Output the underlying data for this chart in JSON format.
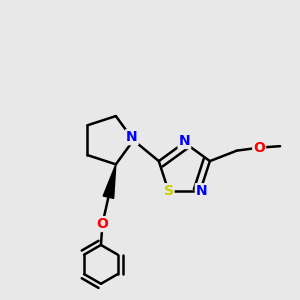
{
  "background_color": "#e8e8e8",
  "bond_color": "#000000",
  "bond_width": 1.8,
  "atom_colors": {
    "N": "#0000FF",
    "S": "#CCCC00",
    "O": "#FF0000",
    "C": "#000000"
  },
  "font_size": 10,
  "fig_width": 3.0,
  "fig_height": 3.0,
  "dpi": 100
}
